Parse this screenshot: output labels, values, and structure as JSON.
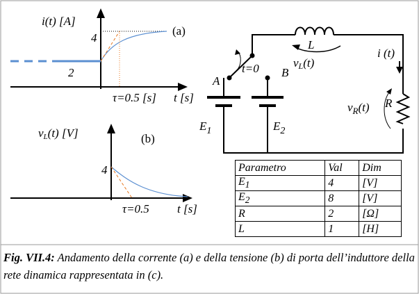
{
  "plot_a": {
    "y_label": "i(t) [A]",
    "tag": "(a)",
    "y_tick_high": "4",
    "y_tick_low": "2",
    "tau": "τ=0.5 [s]",
    "x_label": "t [s]"
  },
  "plot_b": {
    "y_label": {
      "base": "v",
      "sub": "L",
      "rest": "(t) [V]"
    },
    "tag": "(b)",
    "y_tick": "4",
    "tau": "τ=0.5",
    "x_label": "t [s]"
  },
  "circuit": {
    "inductor": "L",
    "inductor_voltage": {
      "base": "v",
      "sub": "L",
      "rest": "(t)"
    },
    "current": "i (t)",
    "node_a": "A",
    "switch_time": "t=0",
    "node_b": "B",
    "resistor_voltage": {
      "base": "v",
      "sub": "R",
      "rest": "(t)"
    },
    "resistor": "R",
    "source_1": {
      "base": "E",
      "sub": "1"
    },
    "source_2": {
      "base": "E",
      "sub": "2"
    }
  },
  "table": {
    "header": [
      "Parametro",
      "Val",
      "Dim"
    ],
    "rows": [
      [
        {
          "base": "E",
          "sub": "1"
        },
        "4",
        "[V]"
      ],
      [
        {
          "base": "E",
          "sub": "2"
        },
        "8",
        "[V]"
      ],
      [
        "R",
        "2",
        "[Ω]"
      ],
      [
        "L",
        "1",
        "[H]"
      ]
    ]
  },
  "caption": {
    "label": "Fig. VII.4:",
    "text": "Andamento della corrente (a) e della tensione (b) di porta dell’induttore della rete dinamica rappresentata in (c)."
  }
}
